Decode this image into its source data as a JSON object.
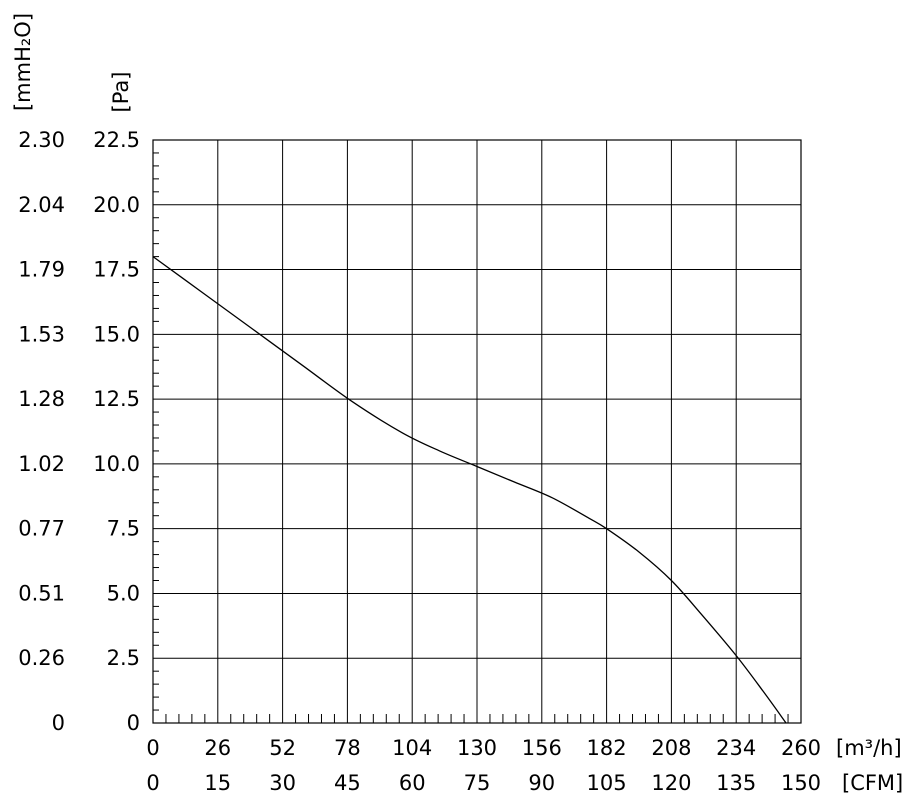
{
  "chart_data": {
    "type": "line",
    "title": "",
    "x_axis": {
      "unit_primary": "[m³/h]",
      "unit_secondary": "[CFM]",
      "ticks_primary": [
        "0",
        "26",
        "52",
        "78",
        "104",
        "130",
        "156",
        "182",
        "208",
        "234",
        "260"
      ],
      "ticks_secondary": [
        "0",
        "15",
        "30",
        "45",
        "60",
        "75",
        "90",
        "105",
        "120",
        "135",
        "150"
      ],
      "range": [
        0,
        260
      ]
    },
    "y_axis": {
      "unit_primary": "[Pa]",
      "unit_secondary": "[mmH₂O]",
      "ticks_primary": [
        "0",
        "2.5",
        "5.0",
        "7.5",
        "10.0",
        "12.5",
        "15.0",
        "17.5",
        "20.0",
        "22.5"
      ],
      "ticks_secondary": [
        "0",
        "0.26",
        "0.51",
        "0.77",
        "1.02",
        "1.28",
        "1.53",
        "1.79",
        "2.04",
        "2.30"
      ],
      "range": [
        0,
        22.5
      ]
    },
    "grid": true,
    "series": [
      {
        "x": [
          0,
          20,
          40,
          60,
          80,
          100,
          115,
          130,
          145,
          160,
          175,
          182,
          195,
          208,
          220,
          234,
          245,
          254
        ],
        "y": [
          18.0,
          16.6,
          15.2,
          13.8,
          12.4,
          11.2,
          10.5,
          9.9,
          9.3,
          8.7,
          7.9,
          7.5,
          6.6,
          5.5,
          4.2,
          2.6,
          1.2,
          0.0
        ]
      }
    ]
  },
  "colors": {
    "line": "#000000",
    "grid": "#000000",
    "background": "#ffffff"
  }
}
